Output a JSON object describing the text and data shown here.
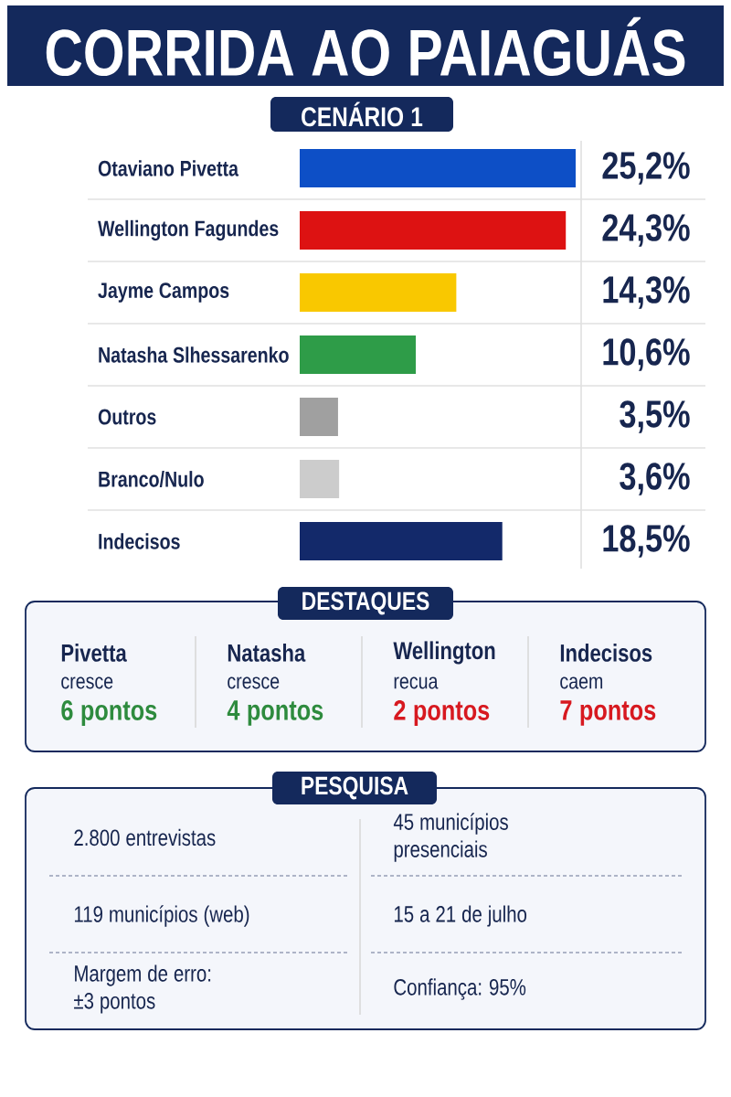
{
  "chart_data": {
    "type": "bar",
    "orientation": "horizontal",
    "title": "CORRIDA AO PAIAGUÁS",
    "subtitle": "CENÁRIO 1",
    "categories": [
      "Otaviano Pivetta",
      "Wellington Fagundes",
      "Jayme Campos",
      "Natasha Slhessarenko",
      "Outros",
      "Branco/Nulo",
      "Indecisos"
    ],
    "values": [
      25.2,
      24.3,
      14.3,
      10.6,
      3.5,
      3.6,
      18.5
    ],
    "colors": [
      "#0d4fc6",
      "#dd1212",
      "#f9c800",
      "#2e9c48",
      "#a0a0a0",
      "#cccccc",
      "#13296a"
    ],
    "value_labels": [
      "25,2%",
      "24,3%",
      "14,3%",
      "10,6%",
      "3,5%",
      "3,6%",
      "18,5%"
    ],
    "annotations": [
      "DESTAQUES",
      "Pivetta",
      "cresce",
      "6 pontos",
      "Natasha",
      "cresce",
      "4 pontos",
      "Wellington",
      "recua",
      "2 pontos",
      "Indecisos",
      "caem",
      "7 pontos",
      "PESQUISA",
      "2.800 entrevistas",
      "45 municípios presenciais",
      "119 municípios (web)",
      "15 a 21 de julho",
      "Margem de erro: ±3 pontos",
      "Confiança: 95%"
    ]
  }
}
